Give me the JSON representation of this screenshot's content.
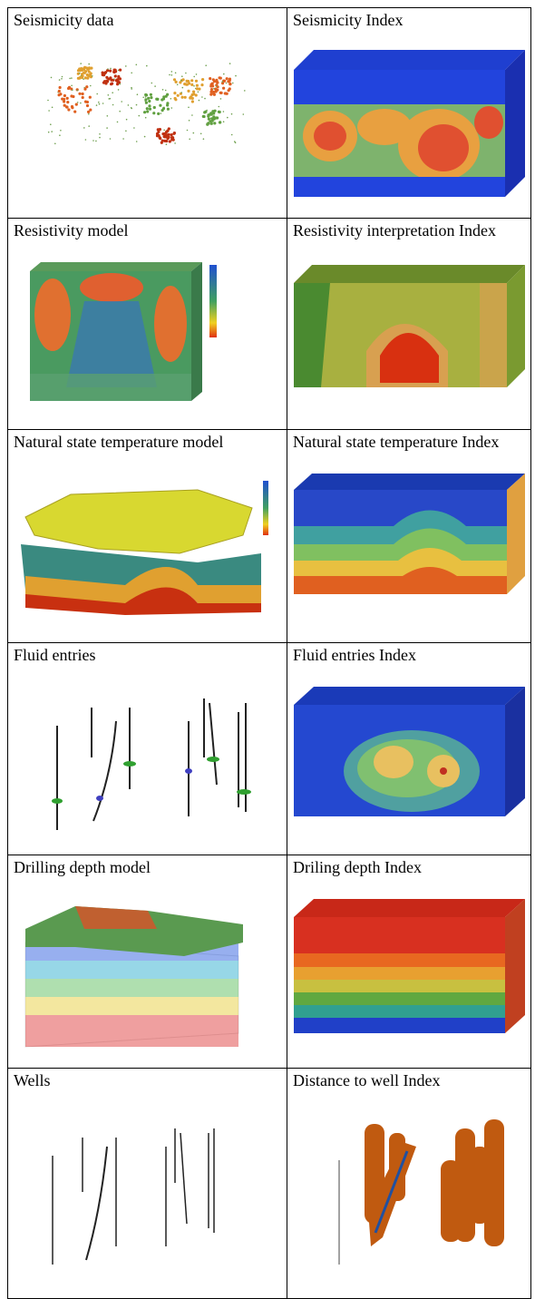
{
  "table": {
    "rows": [
      [
        "Seismicity data",
        "Seismicity Index"
      ],
      [
        "Resistivity model",
        "Resistivity interpretation Index"
      ],
      [
        "Natural state temperature model",
        "Natural state temperature Index"
      ],
      [
        "Fluid entries",
        "Fluid entries Index"
      ],
      [
        "Drilling depth model",
        "Driling depth Index"
      ],
      [
        "Wells",
        "Distance to well Index"
      ]
    ]
  }
}
